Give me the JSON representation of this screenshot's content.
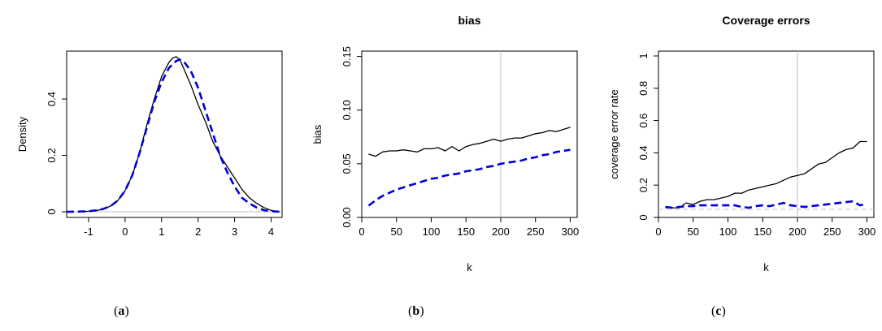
{
  "chart_data": [
    {
      "type": "line",
      "title": "",
      "xlabel": "",
      "ylabel": "Density",
      "xlim": [
        -1.6,
        4.3
      ],
      "ylim": [
        -0.02,
        0.57
      ],
      "xticks": [
        -1,
        0,
        1,
        2,
        3,
        4
      ],
      "yticks": [
        0.0,
        0.2,
        0.4
      ],
      "hline": 0,
      "series": [
        {
          "style": "solid",
          "color": "#000000",
          "x": [
            -1.3,
            -1,
            -0.8,
            -0.6,
            -0.4,
            -0.2,
            0,
            0.2,
            0.4,
            0.6,
            0.8,
            1,
            1.2,
            1.3,
            1.4,
            1.5,
            1.6,
            1.8,
            2,
            2.2,
            2.4,
            2.6,
            2.8,
            3,
            3.2,
            3.4,
            3.6,
            3.8,
            4.0,
            4.2
          ],
          "y": [
            0,
            0.002,
            0.004,
            0.01,
            0.02,
            0.04,
            0.075,
            0.13,
            0.21,
            0.31,
            0.4,
            0.48,
            0.53,
            0.545,
            0.55,
            0.54,
            0.51,
            0.45,
            0.38,
            0.32,
            0.25,
            0.2,
            0.16,
            0.12,
            0.08,
            0.05,
            0.03,
            0.015,
            0.005,
            0
          ]
        },
        {
          "style": "dashed",
          "color": "#0000e0",
          "x": [
            -1.6,
            -1.2,
            -1,
            -0.8,
            -0.6,
            -0.4,
            -0.2,
            0,
            0.2,
            0.4,
            0.6,
            0.8,
            1,
            1.2,
            1.4,
            1.5,
            1.6,
            1.8,
            2,
            2.2,
            2.4,
            2.6,
            2.8,
            3,
            3.2,
            3.4,
            3.6,
            3.8,
            4.0,
            4.3
          ],
          "y": [
            0,
            0.001,
            0.002,
            0.005,
            0.01,
            0.02,
            0.04,
            0.075,
            0.13,
            0.21,
            0.3,
            0.39,
            0.46,
            0.51,
            0.535,
            0.54,
            0.535,
            0.5,
            0.44,
            0.36,
            0.28,
            0.2,
            0.14,
            0.09,
            0.05,
            0.03,
            0.015,
            0.006,
            0.002,
            0
          ]
        }
      ]
    },
    {
      "type": "line",
      "title": "bias",
      "xlabel": "k",
      "ylabel": "bias",
      "xlim": [
        0,
        310
      ],
      "ylim": [
        0,
        0.155
      ],
      "xticks": [
        0,
        50,
        100,
        150,
        200,
        250,
        300
      ],
      "yticks": [
        0.0,
        0.05,
        0.1,
        0.15
      ],
      "vline": 200,
      "series": [
        {
          "style": "solid",
          "color": "#000000",
          "x": [
            10,
            20,
            30,
            40,
            50,
            60,
            70,
            80,
            90,
            100,
            110,
            120,
            130,
            140,
            150,
            160,
            170,
            180,
            190,
            200,
            210,
            220,
            230,
            240,
            250,
            260,
            270,
            280,
            290,
            300
          ],
          "y": [
            0.059,
            0.057,
            0.061,
            0.062,
            0.062,
            0.063,
            0.062,
            0.061,
            0.064,
            0.064,
            0.065,
            0.062,
            0.066,
            0.062,
            0.066,
            0.068,
            0.069,
            0.071,
            0.073,
            0.071,
            0.073,
            0.074,
            0.074,
            0.076,
            0.078,
            0.079,
            0.081,
            0.08,
            0.082,
            0.084
          ]
        },
        {
          "style": "dashed",
          "color": "#0000e0",
          "x": [
            10,
            20,
            30,
            40,
            50,
            60,
            70,
            80,
            90,
            100,
            110,
            120,
            130,
            140,
            150,
            160,
            170,
            180,
            190,
            200,
            210,
            220,
            230,
            240,
            250,
            260,
            270,
            280,
            290,
            300
          ],
          "y": [
            0.011,
            0.016,
            0.02,
            0.023,
            0.026,
            0.028,
            0.03,
            0.032,
            0.034,
            0.036,
            0.037,
            0.039,
            0.04,
            0.041,
            0.043,
            0.044,
            0.045,
            0.047,
            0.048,
            0.05,
            0.051,
            0.052,
            0.053,
            0.055,
            0.056,
            0.058,
            0.059,
            0.061,
            0.062,
            0.063
          ]
        }
      ]
    },
    {
      "type": "line",
      "title": "Coverage errors",
      "xlabel": "k",
      "ylabel": "coverage error rate",
      "xlim": [
        0,
        310
      ],
      "ylim": [
        0,
        1.03
      ],
      "xticks": [
        0,
        50,
        100,
        150,
        200,
        250,
        300
      ],
      "yticks": [
        0.0,
        0.2,
        0.4,
        0.6,
        0.8,
        1.0
      ],
      "vline": 200,
      "hline": 0.05,
      "series": [
        {
          "style": "solid",
          "color": "#000000",
          "x": [
            10,
            20,
            30,
            40,
            50,
            60,
            70,
            80,
            90,
            100,
            110,
            120,
            130,
            140,
            150,
            160,
            170,
            180,
            190,
            200,
            210,
            220,
            230,
            240,
            250,
            260,
            270,
            280,
            290,
            300
          ],
          "y": [
            0.06,
            0.06,
            0.06,
            0.09,
            0.08,
            0.1,
            0.11,
            0.11,
            0.12,
            0.13,
            0.15,
            0.15,
            0.17,
            0.18,
            0.19,
            0.2,
            0.21,
            0.23,
            0.25,
            0.26,
            0.27,
            0.3,
            0.33,
            0.34,
            0.37,
            0.4,
            0.42,
            0.43,
            0.47,
            0.47
          ]
        },
        {
          "style": "dashed",
          "color": "#0000e0",
          "x": [
            10,
            20,
            30,
            40,
            50,
            60,
            70,
            80,
            90,
            100,
            110,
            120,
            130,
            140,
            150,
            160,
            170,
            180,
            190,
            200,
            210,
            220,
            230,
            240,
            250,
            260,
            270,
            280,
            290,
            300
          ],
          "y": [
            0.065,
            0.06,
            0.065,
            0.07,
            0.07,
            0.075,
            0.075,
            0.075,
            0.075,
            0.075,
            0.075,
            0.065,
            0.06,
            0.07,
            0.075,
            0.07,
            0.08,
            0.09,
            0.075,
            0.07,
            0.065,
            0.07,
            0.075,
            0.08,
            0.085,
            0.09,
            0.095,
            0.1,
            0.075,
            0.085
          ]
        }
      ]
    }
  ],
  "captions": [
    {
      "open": "(",
      "letter": "a",
      "close": ")"
    },
    {
      "open": "(",
      "letter": "b",
      "close": ")"
    },
    {
      "open": "(",
      "letter": "c",
      "close": ")"
    }
  ]
}
